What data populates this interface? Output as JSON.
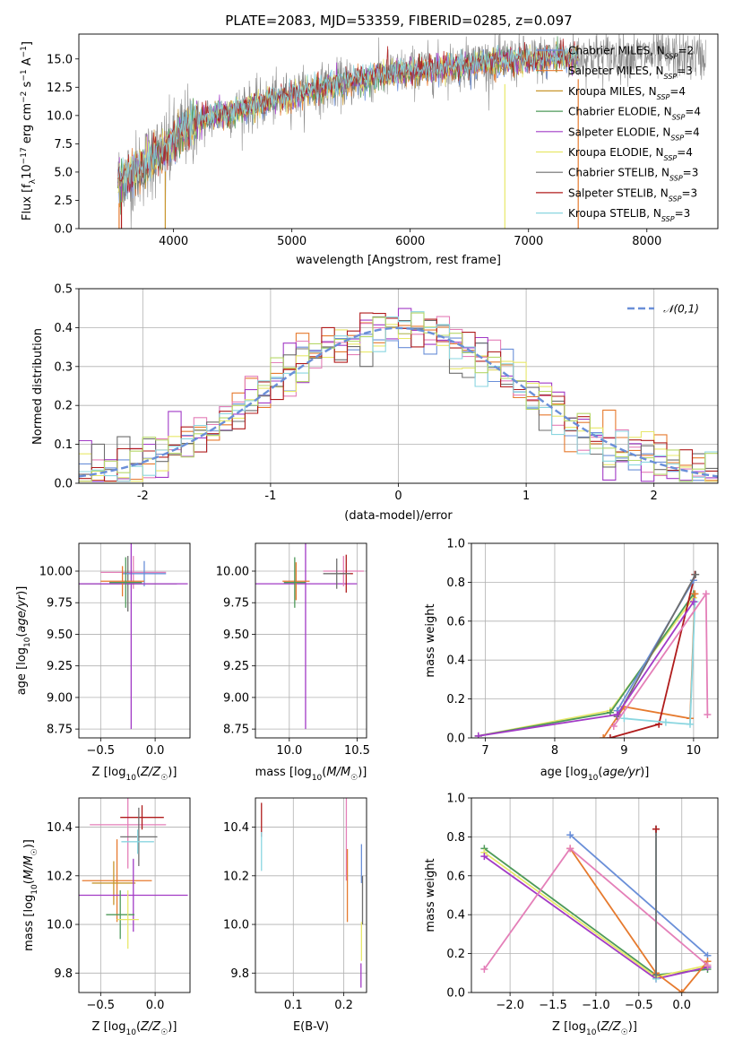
{
  "figure_title": "PLATE=2083, MJD=53359, FIBERID=0285, z=0.097",
  "series_names": [
    "Chabrier MILES, N_SSP=2",
    "Salpeter MILES, N_SSP=3",
    "Kroupa MILES, N_SSP=4",
    "Chabrier ELODIE, N_SSP=4",
    "Salpeter ELODIE, N_SSP=4",
    "Kroupa ELODIE, N_SSP=4",
    "Chabrier STELIB, N_SSP=3",
    "Salpeter STELIB, N_SSP=3",
    "Kroupa STELIB, N_SSP=3"
  ],
  "series_colors": [
    "#6a8fd8",
    "#e67a2e",
    "#c8962e",
    "#4e9a5a",
    "#a23bc6",
    "#e8e86a",
    "#6e6e6e",
    "#b01c1c",
    "#8ad6e0"
  ],
  "extra_colors": {
    "pink": "#e47fb8",
    "lime": "#b6d86a",
    "data_gray": "#8a8a8a"
  },
  "chart_data": [
    {
      "id": "spectrum",
      "type": "line",
      "title": "PLATE=2083, MJD=53359, FIBERID=0285, z=0.097",
      "xlabel": "wavelength [Angstrom, rest frame]",
      "ylabel": "Flux [f_λ 10^-17 erg cm^-2 s^-1 A^-1]",
      "xlim": [
        3200,
        8600
      ],
      "ylim": [
        0,
        17.2
      ],
      "xticks": [
        4000,
        5000,
        6000,
        7000,
        8000
      ],
      "yticks": [
        0.0,
        2.5,
        5.0,
        7.5,
        10.0,
        12.5,
        15.0
      ],
      "ytick_labels": [
        "0.0",
        "2.5",
        "5.0",
        "7.5",
        "10.0",
        "12.5",
        "15.0"
      ],
      "grid": false,
      "legend": "upper-right",
      "continuum_points": [
        [
          3530,
          4.2
        ],
        [
          3650,
          4.8
        ],
        [
          3800,
          6.0
        ],
        [
          3950,
          7.2
        ],
        [
          4100,
          8.8
        ],
        [
          4300,
          9.8
        ],
        [
          4600,
          10.6
        ],
        [
          4900,
          11.5
        ],
        [
          5200,
          12.3
        ],
        [
          5500,
          13.0
        ],
        [
          5900,
          13.8
        ],
        [
          6300,
          14.3
        ],
        [
          6700,
          14.7
        ],
        [
          7100,
          15.0
        ],
        [
          7400,
          15.2
        ],
        [
          7700,
          15.3
        ],
        [
          8000,
          15.3
        ],
        [
          8400,
          15.2
        ],
        [
          8500,
          15.2
        ]
      ],
      "data_range": [
        3530,
        8500
      ],
      "model_range": [
        3530,
        7420
      ],
      "notes_visible": "thin vertical spikes near 3930, 6800, 7420"
    },
    {
      "id": "residual_hist",
      "type": "histogram",
      "xlabel": "(data-model)/error",
      "ylabel": "Normed distribution",
      "xlim": [
        -2.5,
        2.5
      ],
      "ylim": [
        0,
        0.5
      ],
      "xticks": [
        -2,
        -1,
        0,
        1,
        2
      ],
      "yticks": [
        0.0,
        0.1,
        0.2,
        0.3,
        0.4,
        0.5
      ],
      "ytick_labels": [
        "0.0",
        "0.1",
        "0.2",
        "0.3",
        "0.4",
        "0.5"
      ],
      "grid": true,
      "legend": "upper-right",
      "legend_label": "𝒩(0,1)",
      "bin_width": 0.1,
      "reference_curve": "normal(0,1)"
    },
    {
      "id": "age_vs_Z",
      "type": "errorbar",
      "xlabel": "Z [log10(Z/Z☉)]",
      "ylabel": "age [log10(age/yr)]",
      "xlim": [
        -0.7,
        0.32
      ],
      "ylim": [
        8.68,
        10.22
      ],
      "xticks": [
        -0.5,
        0.0
      ],
      "xtick_labels": [
        "−0.5",
        "0.0"
      ],
      "yticks": [
        8.75,
        9.0,
        9.25,
        9.5,
        9.75,
        10.0
      ],
      "ytick_labels": [
        "8.75",
        "9.00",
        "9.25",
        "9.50",
        "9.75",
        "10.00"
      ],
      "grid": true,
      "points": [
        {
          "x": -0.2,
          "y": 9.99,
          "xerr": 0.3,
          "yerr": 0.13,
          "color": "#e47fb8"
        },
        {
          "x": -0.25,
          "y": 9.9,
          "xerr": 0.45,
          "yerr": 0.22,
          "color": "#6e6e6e"
        },
        {
          "x": -0.1,
          "y": 9.98,
          "xerr": 0.2,
          "yerr": 0.1,
          "color": "#6a8fd8"
        },
        {
          "x": -0.22,
          "y": 9.9,
          "xerr": 0.52,
          "yerr": 1.15,
          "color": "#a23bc6"
        },
        {
          "x": -0.3,
          "y": 9.92,
          "xerr": 0.2,
          "yerr": 0.12,
          "color": "#e67a2e"
        },
        {
          "x": -0.27,
          "y": 9.91,
          "xerr": 0.15,
          "yerr": 0.2,
          "color": "#4e9a5a"
        }
      ]
    },
    {
      "id": "age_vs_mass",
      "type": "errorbar",
      "xlabel": "mass [log10(M/M☉)]",
      "xlim": [
        9.75,
        10.57
      ],
      "ylim": [
        8.68,
        10.22
      ],
      "xticks": [
        10.0,
        10.5
      ],
      "xtick_labels": [
        "10.0",
        "10.5"
      ],
      "yticks": [
        8.75,
        9.0,
        9.25,
        9.5,
        9.75,
        10.0
      ],
      "ytick_labels": [
        "8.75",
        "9.00",
        "9.25",
        "9.50",
        "9.75",
        "10.00"
      ],
      "grid": true,
      "points": [
        {
          "x": 10.12,
          "y": 9.9,
          "xerr": 0.38,
          "yerr": 1.15,
          "color": "#a23bc6"
        },
        {
          "x": 10.4,
          "y": 10.0,
          "xerr": 0.15,
          "yerr": 0.12,
          "color": "#e47fb8"
        },
        {
          "x": 10.42,
          "y": 9.98,
          "xerr": 0.05,
          "yerr": 0.15,
          "color": "#b01c1c"
        },
        {
          "x": 10.35,
          "y": 9.98,
          "xerr": 0.1,
          "yerr": 0.12,
          "color": "#6e6e6e"
        },
        {
          "x": 10.05,
          "y": 9.92,
          "xerr": 0.1,
          "yerr": 0.15,
          "color": "#e67a2e"
        },
        {
          "x": 10.04,
          "y": 9.91,
          "xerr": 0.08,
          "yerr": 0.2,
          "color": "#4e9a5a"
        }
      ]
    },
    {
      "id": "massweight_vs_age",
      "type": "line",
      "xlabel": "age [log10(age/yr)]",
      "ylabel": "mass weight",
      "xlim": [
        6.8,
        10.35
      ],
      "ylim": [
        0,
        1.0
      ],
      "xticks": [
        7,
        8,
        9,
        10
      ],
      "yticks": [
        0.0,
        0.2,
        0.4,
        0.6,
        0.8,
        1.0
      ],
      "ytick_labels": [
        "0.0",
        "0.2",
        "0.4",
        "0.6",
        "0.8",
        "1.0"
      ],
      "grid": true,
      "series": [
        {
          "color": "#e8e86a",
          "x": [
            6.9,
            8.8,
            10.0
          ],
          "y": [
            0.01,
            0.14,
            0.72
          ]
        },
        {
          "color": "#4e9a5a",
          "x": [
            6.9,
            8.8,
            10.0
          ],
          "y": [
            0.01,
            0.13,
            0.74
          ]
        },
        {
          "color": "#e67a2e",
          "x": [
            8.7,
            9.0,
            9.95,
            10.02
          ],
          "y": [
            0.0,
            0.16,
            0.1,
            0.74
          ]
        },
        {
          "color": "#b01c1c",
          "x": [
            8.8,
            9.5,
            10.02
          ],
          "y": [
            0.0,
            0.07,
            0.84
          ]
        },
        {
          "color": "#6a8fd8",
          "x": [
            8.9,
            10.0
          ],
          "y": [
            0.14,
            0.81
          ]
        },
        {
          "color": "#6e6e6e",
          "x": [
            8.9,
            10.03
          ],
          "y": [
            0.11,
            0.84
          ]
        },
        {
          "color": "#8ad6e0",
          "x": [
            9.0,
            9.6,
            9.95,
            10.02
          ],
          "y": [
            0.1,
            0.08,
            0.07,
            0.7
          ]
        },
        {
          "color": "#e47fb8",
          "x": [
            8.85,
            10.18,
            10.2
          ],
          "y": [
            0.06,
            0.74,
            0.12
          ]
        },
        {
          "color": "#a23bc6",
          "x": [
            6.9,
            8.9,
            10.0
          ],
          "y": [
            0.01,
            0.12,
            0.7
          ]
        }
      ]
    },
    {
      "id": "mass_vs_Z",
      "type": "errorbar",
      "xlabel": "Z [log10(Z/Z☉)]",
      "ylabel": "mass [log10(M/M☉)]",
      "xlim": [
        -0.7,
        0.32
      ],
      "ylim": [
        9.72,
        10.52
      ],
      "xticks": [
        -0.5,
        0.0
      ],
      "xtick_labels": [
        "−0.5",
        "0.0"
      ],
      "yticks": [
        9.8,
        10.0,
        10.2,
        10.4
      ],
      "ytick_labels": [
        "9.8",
        "10.0",
        "10.2",
        "10.4"
      ],
      "grid": true,
      "points": [
        {
          "x": -0.25,
          "y": 10.41,
          "xerr": 0.35,
          "yerr": 0.18,
          "color": "#e47fb8"
        },
        {
          "x": -0.12,
          "y": 10.44,
          "xerr": 0.2,
          "yerr": 0.05,
          "color": "#b01c1c"
        },
        {
          "x": -0.15,
          "y": 10.36,
          "xerr": 0.17,
          "yerr": 0.12,
          "color": "#6e6e6e"
        },
        {
          "x": -0.16,
          "y": 10.34,
          "xerr": 0.15,
          "yerr": 0.05,
          "color": "#8ad6e0"
        },
        {
          "x": -0.35,
          "y": 10.18,
          "xerr": 0.32,
          "yerr": 0.17,
          "color": "#e67a2e"
        },
        {
          "x": -0.38,
          "y": 10.17,
          "xerr": 0.2,
          "yerr": 0.09,
          "color": "#c8962e"
        },
        {
          "x": -0.2,
          "y": 10.12,
          "xerr": 0.5,
          "yerr": 0.15,
          "color": "#a23bc6"
        },
        {
          "x": -0.32,
          "y": 10.04,
          "xerr": 0.13,
          "yerr": 0.1,
          "color": "#4e9a5a"
        },
        {
          "x": -0.25,
          "y": 10.02,
          "xerr": 0.1,
          "yerr": 0.12,
          "color": "#e8e86a"
        }
      ]
    },
    {
      "id": "mass_vs_ebv",
      "type": "errorbar",
      "xlabel": "E(B-V)",
      "xlim": [
        0.025,
        0.245
      ],
      "ylim": [
        9.72,
        10.52
      ],
      "xticks": [
        0.1,
        0.2
      ],
      "xtick_labels": [
        "0.1",
        "0.2"
      ],
      "yticks": [
        9.8,
        10.0,
        10.2,
        10.4
      ],
      "ytick_labels": [
        "9.8",
        "10.0",
        "10.2",
        "10.4"
      ],
      "grid": true,
      "points": [
        {
          "x": 0.037,
          "y": 10.43,
          "yerr": 0.07,
          "color": "#b01c1c"
        },
        {
          "x": 0.037,
          "y": 10.3,
          "yerr": 0.08,
          "color": "#8ad6e0"
        },
        {
          "x": 0.205,
          "y": 10.35,
          "yerr": 0.17,
          "color": "#e47fb8"
        },
        {
          "x": 0.207,
          "y": 10.16,
          "yerr": 0.15,
          "color": "#e67a2e"
        },
        {
          "x": 0.235,
          "y": 10.25,
          "yerr": 0.08,
          "color": "#6a8fd8"
        },
        {
          "x": 0.237,
          "y": 10.1,
          "yerr": 0.1,
          "color": "#6e6e6e"
        },
        {
          "x": 0.235,
          "y": 9.93,
          "yerr": 0.08,
          "color": "#e8e86a"
        },
        {
          "x": 0.234,
          "y": 9.79,
          "yerr": 0.05,
          "color": "#a23bc6"
        }
      ]
    },
    {
      "id": "massweight_vs_Z",
      "type": "line",
      "xlabel": "Z [log10(Z/Z☉)]",
      "ylabel": "mass weight",
      "xlim": [
        -2.45,
        0.42
      ],
      "ylim": [
        0,
        1.0
      ],
      "xticks": [
        -2.0,
        -1.5,
        -1.0,
        -0.5,
        0.0
      ],
      "xtick_labels": [
        "−2.0",
        "−1.5",
        "−1.0",
        "−0.5",
        "0.0"
      ],
      "yticks": [
        0.0,
        0.2,
        0.4,
        0.6,
        0.8,
        1.0
      ],
      "ytick_labels": [
        "0.0",
        "0.2",
        "0.4",
        "0.6",
        "0.8",
        "1.0"
      ],
      "grid": true,
      "series": [
        {
          "color": "#6a8fd8",
          "x": [
            -1.3,
            0.3
          ],
          "y": [
            0.81,
            0.19
          ]
        },
        {
          "color": "#4e9a5a",
          "x": [
            -2.3,
            -0.3,
            0.3
          ],
          "y": [
            0.74,
            0.09,
            0.12
          ]
        },
        {
          "color": "#e8e86a",
          "x": [
            -2.3,
            -0.3,
            0.3
          ],
          "y": [
            0.72,
            0.08,
            0.14
          ]
        },
        {
          "color": "#a23bc6",
          "x": [
            -2.3,
            -0.3,
            0.3
          ],
          "y": [
            0.7,
            0.07,
            0.13
          ]
        },
        {
          "color": "#e67a2e",
          "x": [
            -1.3,
            -0.3,
            0.0,
            0.3
          ],
          "y": [
            0.74,
            0.1,
            0.0,
            0.16
          ]
        },
        {
          "color": "#e47fb8",
          "x": [
            -2.3,
            -1.3,
            0.3
          ],
          "y": [
            0.12,
            0.74,
            0.14
          ]
        },
        {
          "color": "#8ad6e0",
          "x": [
            -0.3,
            -0.3
          ],
          "y": [
            0.84,
            0.07
          ]
        },
        {
          "color": "#6e6e6e",
          "x": [
            -0.3,
            -0.3
          ],
          "y": [
            0.84,
            0.09
          ]
        },
        {
          "color": "#b01c1c",
          "x": [
            -0.3
          ],
          "y": [
            0.84
          ]
        }
      ]
    }
  ]
}
